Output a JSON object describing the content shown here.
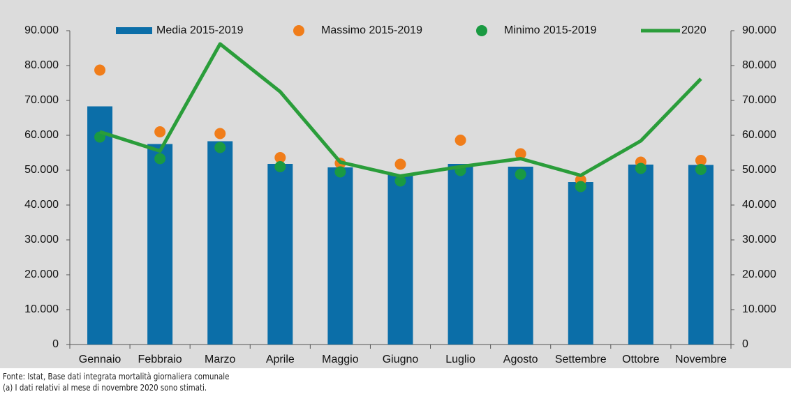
{
  "chart_data": {
    "type": "bar",
    "categories": [
      "Gennaio",
      "Febbraio",
      "Marzo",
      "Aprile",
      "Maggio",
      "Giugno",
      "Luglio",
      "Agosto",
      "Settembre",
      "Ottobre",
      "Novembre"
    ],
    "series": [
      {
        "name": "Media 2015-2019",
        "type": "bar",
        "color": "#0b6ea8",
        "values": [
          68300,
          57500,
          58300,
          51800,
          50800,
          48800,
          51800,
          51000,
          46600,
          51600,
          51500
        ]
      },
      {
        "name": "Massimo 2015-2019",
        "type": "scatter",
        "color": "#f07d1a",
        "values": [
          78700,
          61000,
          60500,
          53600,
          52000,
          51700,
          58600,
          54700,
          47200,
          52300,
          52800
        ]
      },
      {
        "name": "Minimo 2015-2019",
        "type": "scatter",
        "color": "#1a9a42",
        "values": [
          59500,
          53300,
          56500,
          51000,
          49500,
          46900,
          49900,
          48800,
          45300,
          50500,
          50200
        ]
      },
      {
        "name": "2020",
        "type": "line",
        "color": "#2a9d3a",
        "values": [
          61000,
          55500,
          86200,
          72500,
          52300,
          48300,
          51000,
          53300,
          48500,
          58400,
          76200
        ]
      }
    ],
    "ylim": [
      0,
      90000
    ],
    "yticks": [
      0,
      {
        "value": 10000,
        "label": "10.000"
      },
      {
        "value": 20000,
        "label": "20.000"
      },
      {
        "value": 30000,
        "label": "30.000"
      },
      {
        "value": 40000,
        "label": "40.000"
      },
      {
        "value": 50000,
        "label": "50.000"
      },
      {
        "value": 60000,
        "label": "60.000"
      },
      {
        "value": 70000,
        "label": "70.000"
      },
      {
        "value": 80000,
        "label": "80.000"
      },
      {
        "value": 90000,
        "label": "90.000"
      }
    ],
    "y2lim": [
      0,
      90000
    ],
    "y2ticks": [
      0,
      {
        "value": 10000,
        "label": "10.000"
      },
      {
        "value": 20000,
        "label": "20.000"
      },
      {
        "value": 30000,
        "label": "30.000"
      },
      {
        "value": 40000,
        "label": "40.000"
      },
      {
        "value": 50000,
        "label": "50.000"
      },
      {
        "value": 60000,
        "label": "60.000"
      },
      {
        "value": 70000,
        "label": "70.000"
      },
      {
        "value": 80000,
        "label": "80.000"
      },
      {
        "value": 90000,
        "label": "90.000"
      }
    ],
    "legend": "top",
    "notes": [
      "Fonte: Istat, Base dati integrata mortalità giornaliera comunale",
      "(a) I dati relativi al mese di novembre 2020 sono stimati."
    ]
  }
}
